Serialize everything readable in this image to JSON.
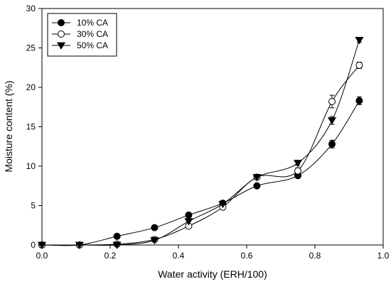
{
  "chart_data": {
    "type": "line",
    "title": "",
    "xlabel": "Water activity (ERH/100)",
    "ylabel": "Moisture content (%)",
    "xlim": [
      0.0,
      1.0
    ],
    "ylim": [
      0,
      30
    ],
    "xticks": [
      "0.0",
      "0.2",
      "0.4",
      "0.6",
      "0.8",
      "1.0"
    ],
    "xtick_values": [
      0.0,
      0.2,
      0.4,
      0.6,
      0.8,
      1.0
    ],
    "yticks": [
      "0",
      "5",
      "10",
      "15",
      "20",
      "25",
      "30"
    ],
    "ytick_values": [
      0,
      5,
      10,
      15,
      20,
      25,
      30
    ],
    "grid": false,
    "legend_position": "top-left",
    "series": [
      {
        "name": "10% CA",
        "marker": "filled-circle",
        "x": [
          0.0,
          0.11,
          0.22,
          0.33,
          0.43,
          0.53,
          0.63,
          0.75,
          0.85,
          0.93
        ],
        "y": [
          0.0,
          0.0,
          1.1,
          2.2,
          3.8,
          5.3,
          7.5,
          8.8,
          12.8,
          18.3
        ],
        "err": [
          0,
          0,
          0,
          0,
          0,
          0,
          0,
          0.3,
          0.5,
          0.5
        ]
      },
      {
        "name": "30% CA",
        "marker": "open-circle",
        "x": [
          0.0,
          0.11,
          0.22,
          0.33,
          0.43,
          0.53,
          0.63,
          0.75,
          0.85,
          0.93
        ],
        "y": [
          0.0,
          0.0,
          0.1,
          0.7,
          2.4,
          4.8,
          8.6,
          9.4,
          18.2,
          22.8
        ],
        "err": [
          0,
          0,
          0,
          0,
          0,
          0,
          0,
          0.4,
          0.8,
          0.4
        ]
      },
      {
        "name": "50% CA",
        "marker": "filled-triangle-down",
        "x": [
          0.0,
          0.11,
          0.22,
          0.33,
          0.43,
          0.53,
          0.63,
          0.75,
          0.85,
          0.93
        ],
        "y": [
          0.0,
          0.0,
          0.0,
          0.6,
          3.0,
          5.2,
          8.6,
          10.4,
          15.8,
          26.0
        ],
        "err": [
          0,
          0,
          0,
          0,
          0,
          0,
          0,
          0.3,
          0.5,
          0.3
        ]
      }
    ]
  }
}
